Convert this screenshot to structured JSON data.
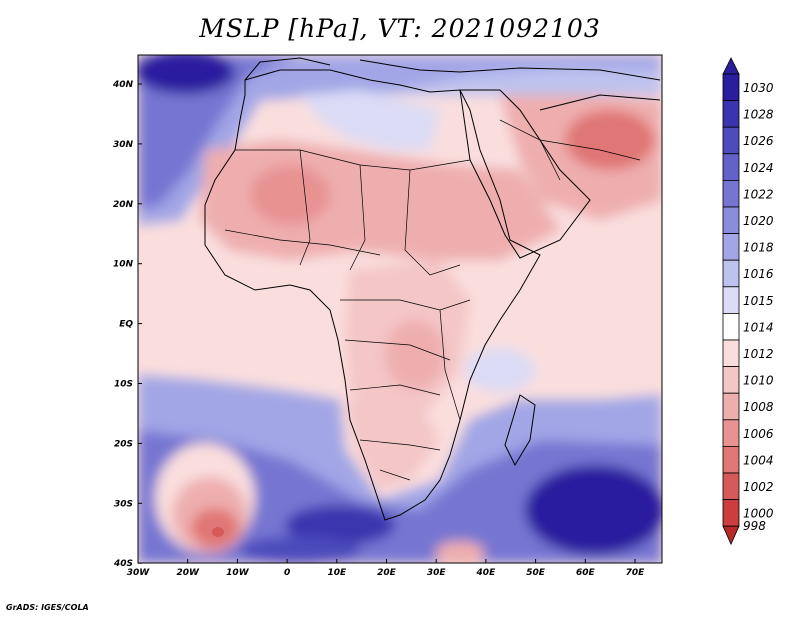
{
  "title": "MSLP [hPa], VT: 2021092103",
  "credit": "GrADS: IGES/COLA",
  "lon_ticks": [
    "30W",
    "20W",
    "10W",
    "0",
    "10E",
    "20E",
    "30E",
    "40E",
    "50E",
    "60E",
    "70E"
  ],
  "lat_ticks": [
    "40N",
    "30N",
    "20N",
    "10N",
    "EQ",
    "10S",
    "20S",
    "30S",
    "40S"
  ],
  "colorbar": {
    "levels": [
      "1030",
      "1028",
      "1026",
      "1024",
      "1022",
      "1020",
      "1018",
      "1016",
      "1015",
      "1014",
      "1012",
      "1010",
      "1008",
      "1006",
      "1004",
      "1002",
      "1000",
      "998"
    ],
    "colors": [
      "#2a1e9e",
      "#3a34ae",
      "#4c4cbc",
      "#6262c8",
      "#7676d2",
      "#8a8cdc",
      "#a2a6e6",
      "#bec2ee",
      "#dcdcf6",
      "#ffffff",
      "#fadede",
      "#f4c6c6",
      "#eeaeae",
      "#e89292",
      "#e07676",
      "#d65a5a",
      "#cc3e3e",
      "#b82a2a"
    ]
  },
  "map": {
    "lon_range": [
      "30W",
      "76E"
    ],
    "lat_range": [
      "40S",
      "45N"
    ],
    "colors": {
      "high": "#2a1e9e",
      "mid_high": "#7676d2",
      "light_high": "#dcdcf6",
      "neutral": "#ffffff",
      "light_low": "#fadede",
      "mid_low": "#eeaeae",
      "low": "#d65a5a"
    }
  }
}
